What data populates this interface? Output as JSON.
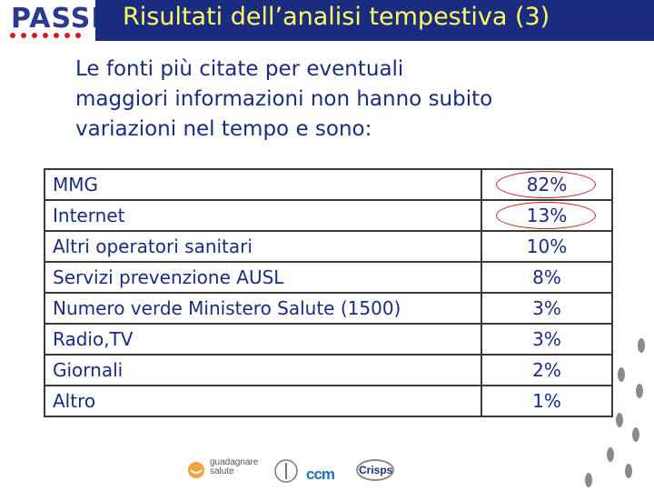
{
  "header": {
    "logo_text": "PASSI",
    "title": "Risultati dell’analisi tempestiva (3)"
  },
  "intro": {
    "lines": [
      "Le fonti più citate per eventuali",
      "maggiori informazioni non hanno subito",
      "variazioni nel tempo e sono:"
    ]
  },
  "table": {
    "rows": [
      {
        "label": "MMG",
        "value": "82%",
        "highlighted": true
      },
      {
        "label": "Internet",
        "value": "13%",
        "highlighted": true
      },
      {
        "label": "Altri operatori sanitari",
        "value": "10%",
        "highlighted": false
      },
      {
        "label": "Servizi prevenzione AUSL",
        "value": "8%",
        "highlighted": false
      },
      {
        "label": "Numero verde Ministero Salute (1500)",
        "value": "3%",
        "highlighted": false
      },
      {
        "label": "Radio,TV",
        "value": "3%",
        "highlighted": false
      },
      {
        "label": "Giornali",
        "value": "2%",
        "highlighted": false
      },
      {
        "label": "Altro",
        "value": "1%",
        "highlighted": false
      }
    ]
  },
  "footer": {
    "logo1_line1": "guadagnare",
    "logo1_line2": "salute",
    "logo2_text": "ccm",
    "logo3_text": "Crisps"
  },
  "colors": {
    "title_bar": "#1a2c80",
    "title_text": "#ffff66",
    "body_text": "#1a2c80",
    "highlight": "#cc2020"
  }
}
